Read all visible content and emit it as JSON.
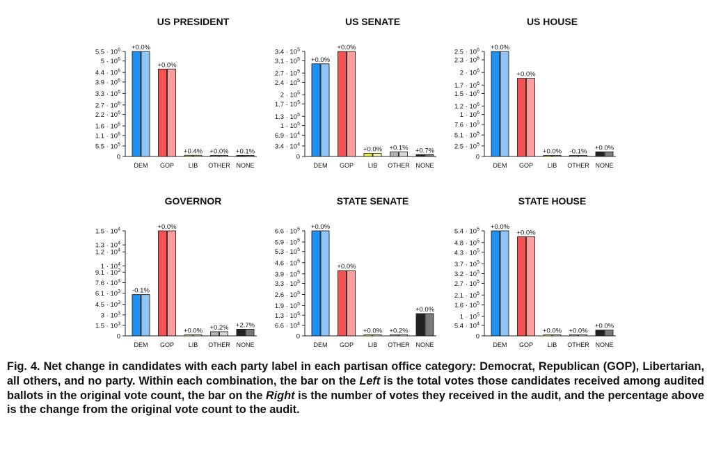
{
  "chart_data": [
    {
      "type": "bar",
      "title": "US PRESIDENT",
      "categories": [
        "DEM",
        "GOP",
        "LIB",
        "OTHER",
        "NONE"
      ],
      "ymax": 5500000,
      "yticks": [
        {
          "m": "5.5",
          "e": "6",
          "v": 5500000
        },
        {
          "m": "5",
          "e": "6",
          "v": 5000000
        },
        {
          "m": "4.4",
          "e": "6",
          "v": 4400000
        },
        {
          "m": "3.9",
          "e": "6",
          "v": 3900000
        },
        {
          "m": "3.3",
          "e": "6",
          "v": 3300000
        },
        {
          "m": "2.7",
          "e": "6",
          "v": 2700000
        },
        {
          "m": "2.2",
          "e": "6",
          "v": 2200000
        },
        {
          "m": "1.6",
          "e": "6",
          "v": 1600000
        },
        {
          "m": "1.1",
          "e": "6",
          "v": 1100000
        },
        {
          "m": "5.5",
          "e": "5",
          "v": 550000
        },
        {
          "m": "0",
          "e": "",
          "v": 0
        }
      ],
      "series": [
        {
          "name": "Original",
          "values": [
            5500000,
            4580000,
            62000,
            16000,
            8000
          ]
        },
        {
          "name": "Audit",
          "values": [
            5500000,
            4580000,
            62000,
            16000,
            8000
          ]
        }
      ],
      "labels": [
        "+0.0%",
        "+0.0%",
        "+0.4%",
        "+0.0%",
        "+0.1%"
      ]
    },
    {
      "type": "bar",
      "title": "US SENATE",
      "categories": [
        "DEM",
        "GOP",
        "LIB",
        "OTHER",
        "NONE"
      ],
      "ymax": 340000,
      "yticks": [
        {
          "m": "3.4",
          "e": "5",
          "v": 340000
        },
        {
          "m": "3.1",
          "e": "5",
          "v": 310000
        },
        {
          "m": "2.7",
          "e": "5",
          "v": 270000
        },
        {
          "m": "2.4",
          "e": "5",
          "v": 240000
        },
        {
          "m": "2",
          "e": "5",
          "v": 200000
        },
        {
          "m": "1.7",
          "e": "5",
          "v": 170000
        },
        {
          "m": "1.3",
          "e": "5",
          "v": 130000
        },
        {
          "m": "1",
          "e": "5",
          "v": 100000
        },
        {
          "m": "6.9",
          "e": "4",
          "v": 69000
        },
        {
          "m": "3.4",
          "e": "4",
          "v": 34000
        },
        {
          "m": "0",
          "e": "",
          "v": 0
        }
      ],
      "series": [
        {
          "name": "Original",
          "values": [
            300000,
            340000,
            10000,
            15000,
            6000
          ]
        },
        {
          "name": "Audit",
          "values": [
            300000,
            340000,
            10000,
            15000,
            6000
          ]
        }
      ],
      "labels": [
        "+0.0%",
        "+0.0%",
        "+0.0%",
        "+0.1%",
        "+0.7%"
      ]
    },
    {
      "type": "bar",
      "title": "US HOUSE",
      "categories": [
        "DEM",
        "GOP",
        "LIB",
        "OTHER",
        "NONE"
      ],
      "ymax": 2500000,
      "yticks": [
        {
          "m": "2.5",
          "e": "6",
          "v": 2500000
        },
        {
          "m": "2.3",
          "e": "6",
          "v": 2300000
        },
        {
          "m": "2",
          "e": "6",
          "v": 2000000
        },
        {
          "m": "1.7",
          "e": "6",
          "v": 1700000
        },
        {
          "m": "1.5",
          "e": "6",
          "v": 1500000
        },
        {
          "m": "1.2",
          "e": "6",
          "v": 1200000
        },
        {
          "m": "1",
          "e": "6",
          "v": 1000000
        },
        {
          "m": "7.6",
          "e": "5",
          "v": 760000
        },
        {
          "m": "5.1",
          "e": "5",
          "v": 510000
        },
        {
          "m": "2.5",
          "e": "5",
          "v": 250000
        },
        {
          "m": "0",
          "e": "",
          "v": 0
        }
      ],
      "series": [
        {
          "name": "Original",
          "values": [
            2500000,
            1860000,
            12000,
            12000,
            110000
          ]
        },
        {
          "name": "Audit",
          "values": [
            2500000,
            1860000,
            12000,
            12000,
            110000
          ]
        }
      ],
      "labels": [
        "+0.0%",
        "+0.0%",
        "+0.0%",
        "-0.1%",
        "+0.0%"
      ]
    },
    {
      "type": "bar",
      "title": "GOVERNOR",
      "categories": [
        "DEM",
        "GOP",
        "LIB",
        "OTHER",
        "NONE"
      ],
      "ymax": 15000,
      "yticks": [
        {
          "m": "1.5",
          "e": "4",
          "v": 15000
        },
        {
          "m": "1.3",
          "e": "4",
          "v": 13000
        },
        {
          "m": "1.2",
          "e": "4",
          "v": 12000
        },
        {
          "m": "1",
          "e": "4",
          "v": 10000
        },
        {
          "m": "9.1",
          "e": "3",
          "v": 9100
        },
        {
          "m": "7.6",
          "e": "3",
          "v": 7600
        },
        {
          "m": "6.1",
          "e": "3",
          "v": 6100
        },
        {
          "m": "4.5",
          "e": "3",
          "v": 4500
        },
        {
          "m": "3",
          "e": "3",
          "v": 3000
        },
        {
          "m": "1.5",
          "e": "3",
          "v": 1500
        },
        {
          "m": "0",
          "e": "",
          "v": 0
        }
      ],
      "series": [
        {
          "name": "Original",
          "values": [
            5900,
            15000,
            80,
            600,
            950
          ]
        },
        {
          "name": "Audit",
          "values": [
            5900,
            15000,
            80,
            600,
            950
          ]
        }
      ],
      "labels": [
        "-0.1%",
        "+0.0%",
        "+0.0%",
        "+0.2%",
        "+2.7%"
      ]
    },
    {
      "type": "bar",
      "title": "STATE SENATE",
      "categories": [
        "DEM",
        "GOP",
        "LIB",
        "OTHER",
        "NONE"
      ],
      "ymax": 660000,
      "yticks": [
        {
          "m": "6.6",
          "e": "5",
          "v": 660000
        },
        {
          "m": "5.9",
          "e": "5",
          "v": 590000
        },
        {
          "m": "5.3",
          "e": "5",
          "v": 530000
        },
        {
          "m": "4.6",
          "e": "5",
          "v": 460000
        },
        {
          "m": "3.9",
          "e": "5",
          "v": 390000
        },
        {
          "m": "3.3",
          "e": "5",
          "v": 330000
        },
        {
          "m": "2.6",
          "e": "5",
          "v": 260000
        },
        {
          "m": "1.9",
          "e": "5",
          "v": 190000
        },
        {
          "m": "1.3",
          "e": "5",
          "v": 130000
        },
        {
          "m": "6.6",
          "e": "4",
          "v": 66000
        },
        {
          "m": "0",
          "e": "",
          "v": 0
        }
      ],
      "series": [
        {
          "name": "Original",
          "values": [
            660000,
            410000,
            3000,
            2500,
            140000
          ]
        },
        {
          "name": "Audit",
          "values": [
            660000,
            410000,
            3000,
            2500,
            140000
          ]
        }
      ],
      "labels": [
        "+0.0%",
        "+0.0%",
        "+0.0%",
        "+0.2%",
        "+0.0%"
      ]
    },
    {
      "type": "bar",
      "title": "STATE HOUSE",
      "categories": [
        "DEM",
        "GOP",
        "LIB",
        "OTHER",
        "NONE"
      ],
      "ymax": 540000,
      "yticks": [
        {
          "m": "5.4",
          "e": "5",
          "v": 540000
        },
        {
          "m": "4.8",
          "e": "5",
          "v": 480000
        },
        {
          "m": "4.3",
          "e": "5",
          "v": 430000
        },
        {
          "m": "3.7",
          "e": "5",
          "v": 370000
        },
        {
          "m": "3.2",
          "e": "5",
          "v": 320000
        },
        {
          "m": "2.7",
          "e": "5",
          "v": 270000
        },
        {
          "m": "2.1",
          "e": "5",
          "v": 210000
        },
        {
          "m": "1.6",
          "e": "5",
          "v": 160000
        },
        {
          "m": "1",
          "e": "5",
          "v": 100000
        },
        {
          "m": "5.4",
          "e": "4",
          "v": 54000
        },
        {
          "m": "0",
          "e": "",
          "v": 0
        }
      ],
      "series": [
        {
          "name": "Original",
          "values": [
            540000,
            510000,
            1500,
            4000,
            30000
          ]
        },
        {
          "name": "Audit",
          "values": [
            540000,
            510000,
            1500,
            4000,
            30000
          ]
        }
      ],
      "labels": [
        "+0.0%",
        "+0.0%",
        "+0.0%",
        "+0.0%",
        "+0.0%"
      ]
    }
  ],
  "colors": {
    "DEM": [
      "#1f8ff0",
      "#8ec4f6"
    ],
    "GOP": [
      "#f55252",
      "#fa9e9e"
    ],
    "LIB": [
      "#e6ee40",
      "#f2f6a6"
    ],
    "OTHER": [
      "#b4b4b4",
      "#d8d8d8"
    ],
    "NONE": [
      "#222222",
      "#7a7a7a"
    ]
  },
  "caption": {
    "part1": "Fig. 4. Net change in candidates with each party label in each partisan office category: Democrat, Republican (GOP), Libertarian, all others, and no party. Within each combination, the bar on the ",
    "left_word": "Left",
    "part2": " is the total votes those candidates received among audited ballots in the original vote count, the bar on the ",
    "right_word": "Right",
    "part3": " is the number of votes they received in the audit, and the percentage above is the change from the original vote count to the audit."
  }
}
